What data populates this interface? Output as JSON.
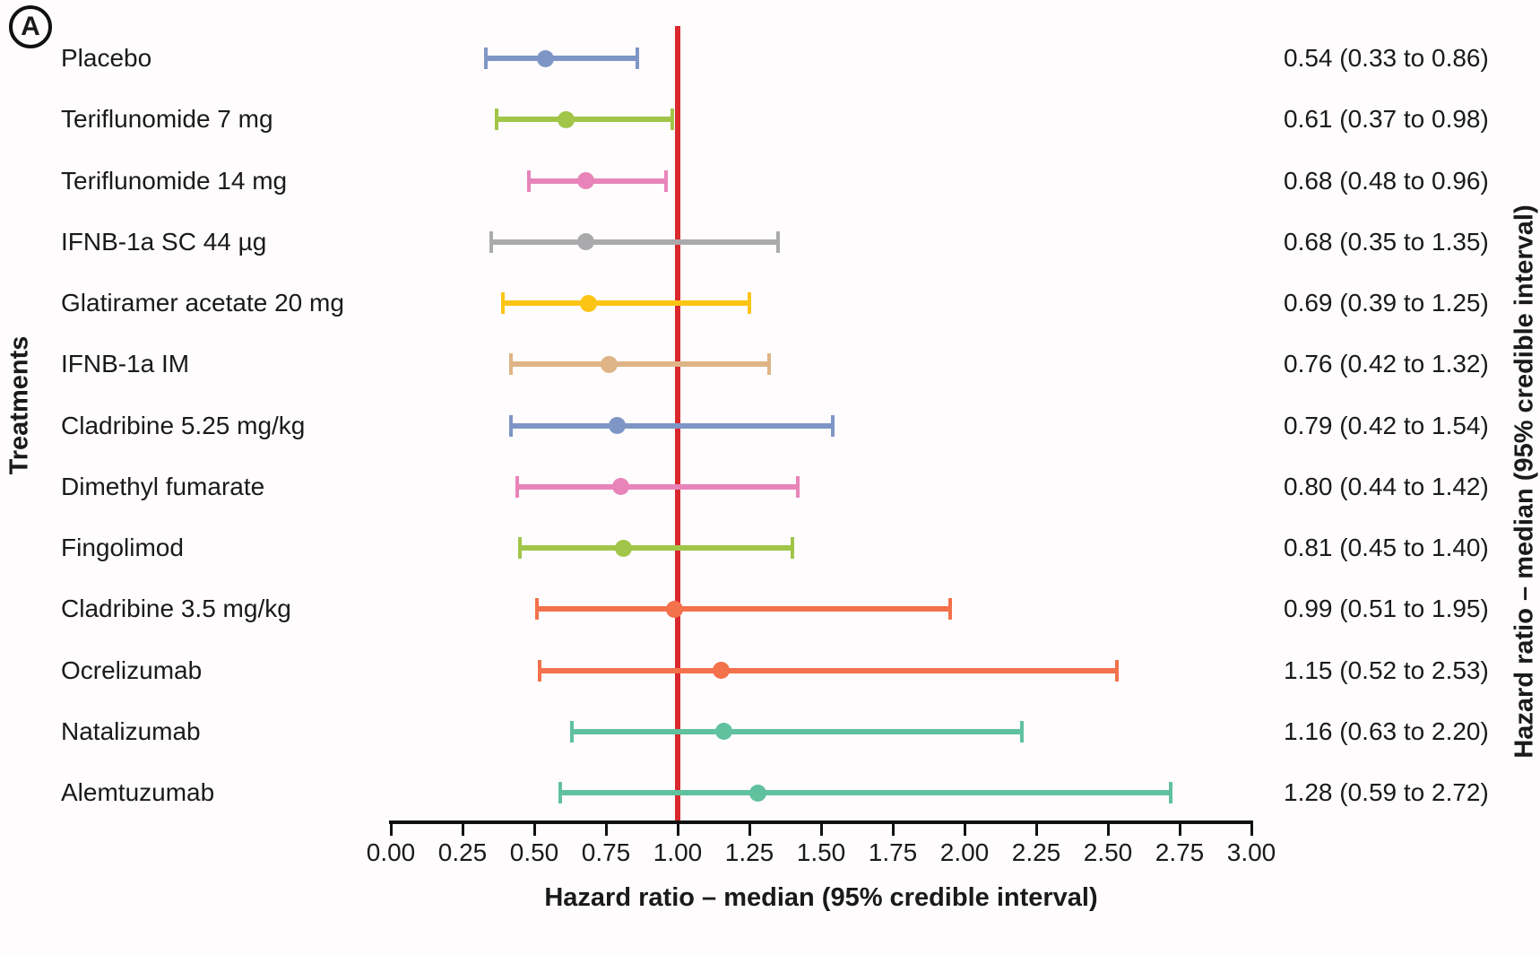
{
  "figure": {
    "panel_label": "A"
  },
  "chart_data": {
    "type": "forest",
    "grid": false,
    "legend": false,
    "x_axis": {
      "label": "Hazard ratio – median (95% credible interval)",
      "min": 0,
      "max": 3,
      "tick_step": 0.25,
      "ticks": [
        "0.00",
        "0.25",
        "0.50",
        "0.75",
        "1.00",
        "1.25",
        "1.50",
        "1.75",
        "2.00",
        "2.25",
        "2.50",
        "2.75",
        "3.00"
      ]
    },
    "y_axis_left_label": "Treatments",
    "y_axis_right_label": "Hazard ratio – median (95% credible interval)",
    "reference_line": {
      "x": 1.0,
      "color": "#d9282e"
    },
    "rows": [
      {
        "treatment": "Placebo",
        "median": 0.54,
        "lower": 0.33,
        "upper": 0.86,
        "value_label": "0.54 (0.33 to 0.86)",
        "color": "#7e96c6"
      },
      {
        "treatment": "Teriflunomide 7 mg",
        "median": 0.61,
        "lower": 0.37,
        "upper": 0.98,
        "value_label": "0.61 (0.37 to 0.98)",
        "color": "#a1c548"
      },
      {
        "treatment": "Teriflunomide 14 mg",
        "median": 0.68,
        "lower": 0.48,
        "upper": 0.96,
        "value_label": "0.68 (0.48 to 0.96)",
        "color": "#e884b9"
      },
      {
        "treatment": "IFNB-1a SC 44 µg",
        "median": 0.68,
        "lower": 0.35,
        "upper": 1.35,
        "value_label": "0.68 (0.35 to 1.35)",
        "color": "#aaaaac"
      },
      {
        "treatment": "Glatiramer acetate 20 mg",
        "median": 0.69,
        "lower": 0.39,
        "upper": 1.25,
        "value_label": "0.69 (0.39 to 1.25)",
        "color": "#fcc516"
      },
      {
        "treatment": "IFNB-1a IM",
        "median": 0.76,
        "lower": 0.42,
        "upper": 1.32,
        "value_label": "0.76 (0.42 to 1.32)",
        "color": "#dfb486"
      },
      {
        "treatment": "Cladribine 5.25 mg/kg",
        "median": 0.79,
        "lower": 0.42,
        "upper": 1.54,
        "value_label": "0.79 (0.42 to 1.54)",
        "color": "#7e96c6"
      },
      {
        "treatment": "Dimethyl fumarate",
        "median": 0.8,
        "lower": 0.44,
        "upper": 1.42,
        "value_label": "0.80 (0.44 to 1.42)",
        "color": "#e884b9"
      },
      {
        "treatment": "Fingolimod",
        "median": 0.81,
        "lower": 0.45,
        "upper": 1.4,
        "value_label": "0.81 (0.45 to 1.40)",
        "color": "#a1c548"
      },
      {
        "treatment": "Cladribine 3.5 mg/kg",
        "median": 0.99,
        "lower": 0.51,
        "upper": 1.95,
        "value_label": "0.99 (0.51 to 1.95)",
        "color": "#f3714b"
      },
      {
        "treatment": "Ocrelizumab",
        "median": 1.15,
        "lower": 0.52,
        "upper": 2.53,
        "value_label": "1.15 (0.52 to 2.53)",
        "color": "#f3714b"
      },
      {
        "treatment": "Natalizumab",
        "median": 1.16,
        "lower": 0.63,
        "upper": 2.2,
        "value_label": "1.16 (0.63 to 2.20)",
        "color": "#60c19f"
      },
      {
        "treatment": "Alemtuzumab",
        "median": 1.28,
        "lower": 0.59,
        "upper": 2.72,
        "value_label": "1.28 (0.59 to 2.72)",
        "color": "#60c19f"
      }
    ]
  }
}
